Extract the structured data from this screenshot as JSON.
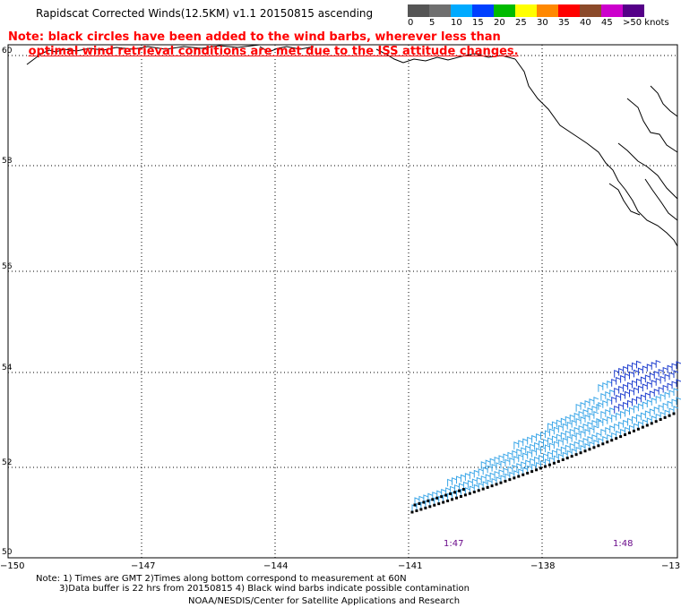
{
  "title": "Rapidscat Corrected Winds(12.5KM) v1.1 20150815 ascending",
  "note_line1": "Note: black circles have been added to the wind barbs, wherever less than",
  "note_line2": "optimal wind retrieval conditions are met due to the ISS attitude changes.",
  "legend": {
    "labels": [
      "0",
      "5",
      "10",
      "15",
      "20",
      "25",
      "30",
      "35",
      "40",
      "45",
      ">50 knots"
    ],
    "colors": [
      "#555555",
      "#6f6f6f",
      "#00aaff",
      "#0040ff",
      "#00bb00",
      "#ffff00",
      "#ff8800",
      "#ff0000",
      "#8b4a2a",
      "#cc00cc",
      "#550088"
    ]
  },
  "lat_labels": [
    "60",
    "58",
    "56",
    "54",
    "52",
    "50"
  ],
  "lon_labels": [
    "−150",
    "−147",
    "−144",
    "−141",
    "−138",
    "−13"
  ],
  "time_labels": [
    "1:47",
    "1:48"
  ],
  "bottom_note1": "Note: 1) Times are GMT 2)Times along bottom correspond to measurement at 60N",
  "bottom_note2": "3)Data buffer is 22 hrs from 20150815 4) Black wind barbs indicate possible contamination",
  "credit": "NOAA/NESDIS/Center for Satellite Applications and Research"
}
